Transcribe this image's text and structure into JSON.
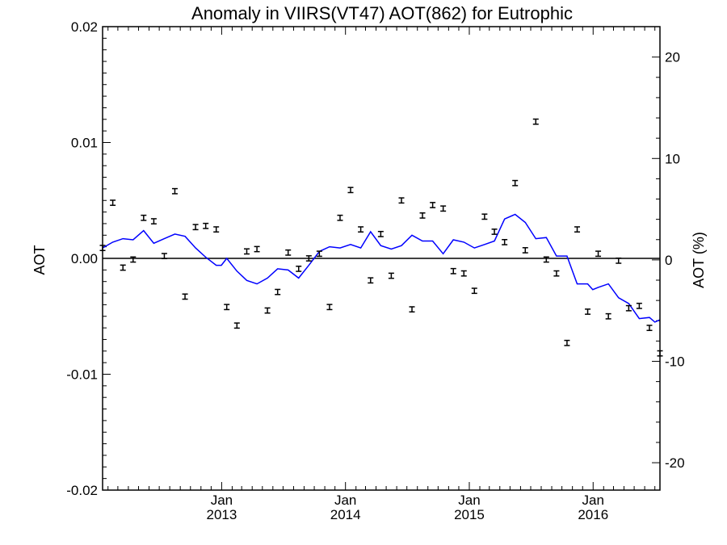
{
  "chart_data": {
    "type": "line",
    "title": "Anomaly in VIIRS(VT47) AOT(862) for Eutrophic",
    "ylabel": "AOT",
    "ylabel_right": "AOT (%)",
    "ylim": [
      -0.02,
      0.02
    ],
    "ylim_right": [
      -22.7,
      23.0
    ],
    "xlim": [
      "2012-01-16",
      "2016-07-16"
    ],
    "yticks": [
      {
        "value": 0.02,
        "label": "0.02"
      },
      {
        "value": 0.01,
        "label": "0.01"
      },
      {
        "value": 0.0,
        "label": "0.00"
      },
      {
        "value": -0.01,
        "label": "-0.01"
      },
      {
        "value": -0.02,
        "label": "-0.02"
      }
    ],
    "yticks_right": [
      {
        "value": 20,
        "label": "20"
      },
      {
        "value": 10,
        "label": "10"
      },
      {
        "value": 0,
        "label": "0"
      },
      {
        "value": -10,
        "label": "-10"
      },
      {
        "value": -20,
        "label": "-20"
      }
    ],
    "xticks": [
      {
        "date": "2013-01-01",
        "month": "Jan",
        "year": "2013"
      },
      {
        "date": "2014-01-01",
        "month": "Jan",
        "year": "2014"
      },
      {
        "date": "2015-01-01",
        "month": "Jan",
        "year": "2015"
      },
      {
        "date": "2016-01-01",
        "month": "Jan",
        "year": "2016"
      }
    ],
    "zero_line": true,
    "colors": {
      "line": "#0000ff",
      "points": "#000000"
    },
    "series": [
      {
        "kind": "points_with_error_bars",
        "error": 0.00022,
        "points": [
          [
            "2012-01-16",
            0.0009
          ],
          [
            "2012-02-15",
            0.0048
          ],
          [
            "2012-03-16",
            -0.0008
          ],
          [
            "2012-04-15",
            -0.0001
          ],
          [
            "2012-05-16",
            0.0035
          ],
          [
            "2012-06-15",
            0.0032
          ],
          [
            "2012-07-16",
            0.0002
          ],
          [
            "2012-08-16",
            0.0058
          ],
          [
            "2012-09-15",
            -0.0033
          ],
          [
            "2012-10-16",
            0.0027
          ],
          [
            "2012-11-15",
            0.0028
          ],
          [
            "2012-12-16",
            0.0025
          ],
          [
            "2013-01-16",
            -0.0042
          ],
          [
            "2013-02-15",
            -0.0058
          ],
          [
            "2013-03-16",
            0.0006
          ],
          [
            "2013-04-15",
            0.0008
          ],
          [
            "2013-05-16",
            -0.0045
          ],
          [
            "2013-06-15",
            -0.0029
          ],
          [
            "2013-07-16",
            0.0005
          ],
          [
            "2013-08-16",
            -0.0009
          ],
          [
            "2013-09-15",
            0.0
          ],
          [
            "2013-10-16",
            0.0004
          ],
          [
            "2013-11-15",
            -0.0042
          ],
          [
            "2013-12-16",
            0.0035
          ],
          [
            "2014-01-16",
            0.0059
          ],
          [
            "2014-02-15",
            0.0025
          ],
          [
            "2014-03-16",
            -0.0019
          ],
          [
            "2014-04-15",
            0.0021
          ],
          [
            "2014-05-16",
            -0.0015
          ],
          [
            "2014-06-15",
            0.005
          ],
          [
            "2014-07-16",
            -0.0044
          ],
          [
            "2014-08-16",
            0.0037
          ],
          [
            "2014-09-15",
            0.0046
          ],
          [
            "2014-10-16",
            0.0043
          ],
          [
            "2014-11-15",
            -0.0011
          ],
          [
            "2014-12-16",
            -0.0013
          ],
          [
            "2015-01-16",
            -0.0028
          ],
          [
            "2015-02-15",
            0.0036
          ],
          [
            "2015-03-16",
            0.0023
          ],
          [
            "2015-04-15",
            0.0014
          ],
          [
            "2015-05-16",
            0.0065
          ],
          [
            "2015-06-15",
            0.0007
          ],
          [
            "2015-07-16",
            0.0118
          ],
          [
            "2015-08-16",
            -0.0001
          ],
          [
            "2015-09-15",
            -0.0013
          ],
          [
            "2015-10-16",
            -0.0073
          ],
          [
            "2015-11-15",
            0.0025
          ],
          [
            "2015-12-16",
            -0.0046
          ],
          [
            "2016-01-16",
            0.0004
          ],
          [
            "2016-02-15",
            -0.005
          ],
          [
            "2016-03-16",
            -0.0002
          ],
          [
            "2016-04-15",
            -0.0043
          ],
          [
            "2016-05-16",
            -0.0041
          ],
          [
            "2016-06-15",
            -0.006
          ],
          [
            "2016-07-16",
            -0.0082
          ]
        ]
      },
      {
        "kind": "line",
        "points": [
          [
            "2012-01-16",
            0.0009
          ],
          [
            "2012-02-15",
            0.0014
          ],
          [
            "2012-03-16",
            0.0017
          ],
          [
            "2012-04-15",
            0.0016
          ],
          [
            "2012-05-16",
            0.0024
          ],
          [
            "2012-06-15",
            0.0013
          ],
          [
            "2012-07-16",
            0.0017
          ],
          [
            "2012-08-16",
            0.0021
          ],
          [
            "2012-09-15",
            0.0019
          ],
          [
            "2012-10-16",
            0.0009
          ],
          [
            "2012-11-15",
            0.0001
          ],
          [
            "2012-12-16",
            -0.0006
          ],
          [
            "2012-12-31",
            -0.0006
          ],
          [
            "2013-01-16",
            0.0
          ],
          [
            "2013-02-15",
            -0.0011
          ],
          [
            "2013-03-16",
            -0.0019
          ],
          [
            "2013-04-15",
            -0.0022
          ],
          [
            "2013-05-16",
            -0.0017
          ],
          [
            "2013-06-15",
            -0.0009
          ],
          [
            "2013-07-16",
            -0.001
          ],
          [
            "2013-08-16",
            -0.0017
          ],
          [
            "2013-09-15",
            -0.0006
          ],
          [
            "2013-10-16",
            0.0006
          ],
          [
            "2013-11-15",
            0.001
          ],
          [
            "2013-12-16",
            0.0009
          ],
          [
            "2014-01-16",
            0.0012
          ],
          [
            "2014-02-15",
            0.0009
          ],
          [
            "2014-03-16",
            0.0023
          ],
          [
            "2014-04-15",
            0.0011
          ],
          [
            "2014-05-16",
            0.0008
          ],
          [
            "2014-06-15",
            0.0011
          ],
          [
            "2014-07-16",
            0.002
          ],
          [
            "2014-08-16",
            0.0015
          ],
          [
            "2014-09-15",
            0.0015
          ],
          [
            "2014-10-16",
            0.0004
          ],
          [
            "2014-11-15",
            0.0016
          ],
          [
            "2014-12-16",
            0.0014
          ],
          [
            "2015-01-16",
            0.0009
          ],
          [
            "2015-02-15",
            0.0012
          ],
          [
            "2015-03-16",
            0.0015
          ],
          [
            "2015-04-15",
            0.0034
          ],
          [
            "2015-05-16",
            0.0038
          ],
          [
            "2015-06-15",
            0.0031
          ],
          [
            "2015-07-16",
            0.0017
          ],
          [
            "2015-08-16",
            0.0018
          ],
          [
            "2015-09-15",
            0.0002
          ],
          [
            "2015-10-16",
            0.0002
          ],
          [
            "2015-11-15",
            -0.0022
          ],
          [
            "2015-12-16",
            -0.0022
          ],
          [
            "2015-12-31",
            -0.0027
          ],
          [
            "2016-01-16",
            -0.0025
          ],
          [
            "2016-02-15",
            -0.0022
          ],
          [
            "2016-03-16",
            -0.0034
          ],
          [
            "2016-04-15",
            -0.0039
          ],
          [
            "2016-05-16",
            -0.0052
          ],
          [
            "2016-06-15",
            -0.0051
          ],
          [
            "2016-07-01",
            -0.0055
          ],
          [
            "2016-07-16",
            -0.0053
          ]
        ]
      }
    ]
  }
}
